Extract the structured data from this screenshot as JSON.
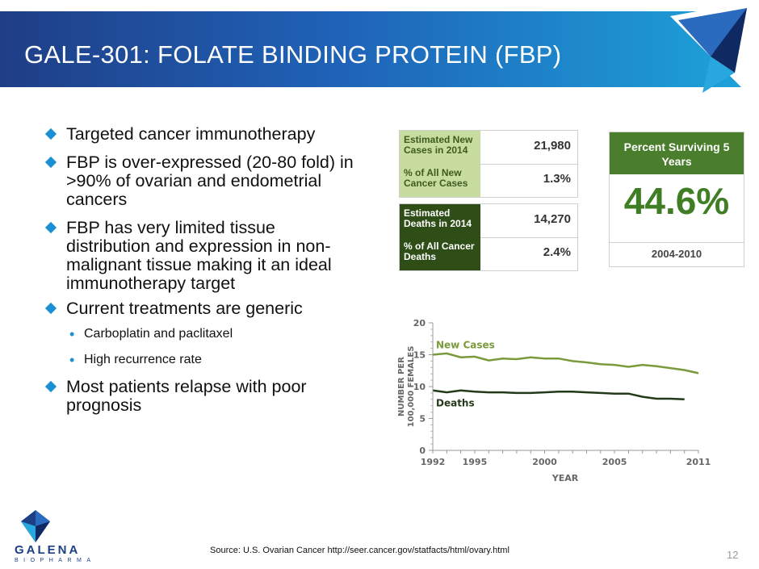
{
  "header": {
    "title": "GALE-301: FOLATE BINDING PROTEIN (FBP)"
  },
  "bullets": [
    "Targeted cancer immunotherapy",
    "FBP is over-expressed (20-80 fold) in >90% of ovarian and endometrial cancers",
    "FBP has very limited tissue distribution and expression in non-malignant tissue making it an ideal immunotherapy target",
    "Current treatments are generic",
    "Most patients relapse with poor prognosis"
  ],
  "sub_bullets": [
    "Carboplatin and paclitaxel",
    "High recurrence rate"
  ],
  "stats": {
    "new_cases_label": "Estimated New Cases in 2014",
    "new_cases_value": "21,980",
    "pct_new_label": "% of All New Cancer Cases",
    "pct_new_value": "1.3%",
    "deaths_label": "Estimated Deaths in 2014",
    "deaths_value": "14,270",
    "pct_deaths_label": "% of All Cancer Deaths",
    "pct_deaths_value": "2.4%",
    "survival_title": "Percent Surviving 5 Years",
    "survival_value": "44.6%",
    "survival_years": "2004-2010"
  },
  "chart_data": {
    "type": "line",
    "xlabel": "YEAR",
    "ylabel": "NUMBER PER 100,000 FEMALES",
    "xlim": [
      1992,
      2011
    ],
    "ylim": [
      0,
      20
    ],
    "xticks": [
      "1992",
      "1995",
      "2000",
      "2005",
      "2011"
    ],
    "yticks": [
      "0",
      "5",
      "10",
      "15",
      "20"
    ],
    "x": [
      1992,
      1993,
      1994,
      1995,
      1996,
      1997,
      1998,
      1999,
      2000,
      2001,
      2002,
      2003,
      2004,
      2005,
      2006,
      2007,
      2008,
      2009,
      2010,
      2011
    ],
    "series": [
      {
        "name": "New Cases",
        "color": "#7a9a3c",
        "values": [
          15.0,
          15.2,
          14.6,
          14.7,
          14.1,
          14.4,
          14.3,
          14.6,
          14.4,
          14.4,
          14.0,
          13.8,
          13.5,
          13.4,
          13.1,
          13.4,
          13.2,
          12.9,
          12.6,
          12.1
        ]
      },
      {
        "name": "Deaths",
        "color": "#24391a",
        "values": [
          9.4,
          9.1,
          9.4,
          9.2,
          9.1,
          9.1,
          9.0,
          9.0,
          9.1,
          9.2,
          9.2,
          9.1,
          9.0,
          8.9,
          8.9,
          8.4,
          8.1,
          8.1,
          8.0,
          null
        ]
      }
    ]
  },
  "footer": {
    "source": "Source: U.S. Ovarian Cancer http://seer.cancer.gov/statfacts/html/ovary.html",
    "page_number": "12",
    "logo_name": "GALENA",
    "logo_sub": "BIOPHARMA"
  }
}
